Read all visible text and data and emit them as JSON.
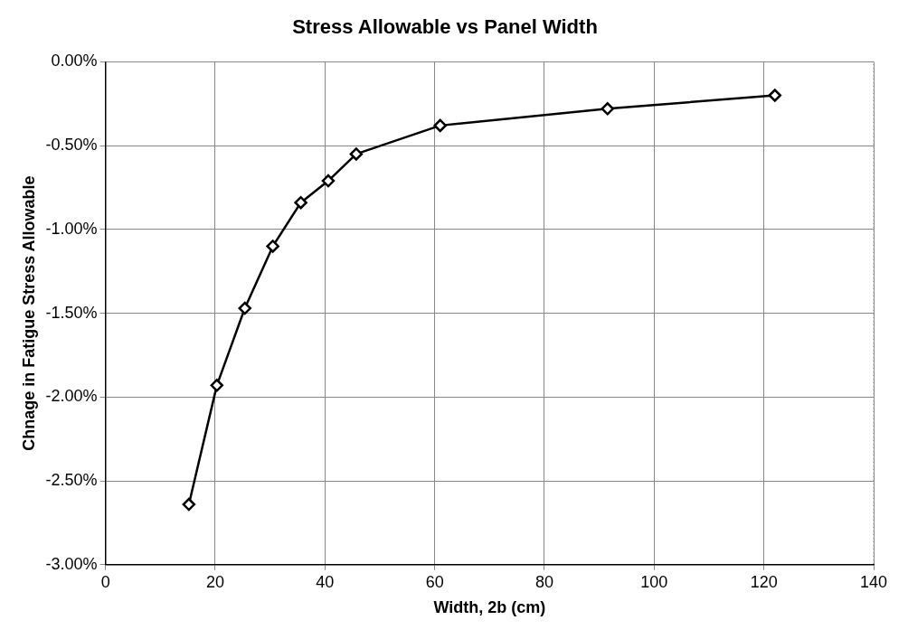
{
  "chart_data": {
    "type": "line",
    "title": "Stress Allowable vs Panel Width",
    "xlabel": "Width, 2b (cm)",
    "ylabel": "Chnage in Fatigue Stress Allowable",
    "x": [
      15.2,
      20.3,
      25.4,
      30.5,
      35.6,
      40.6,
      45.7,
      61.0,
      91.5,
      122.0
    ],
    "series": [
      {
        "color": "#000000",
        "values": [
          -2.64,
          -1.93,
          -1.47,
          -1.1,
          -0.84,
          -0.71,
          -0.55,
          -0.38,
          -0.28,
          -0.2
        ]
      }
    ],
    "xlim": [
      0,
      140
    ],
    "xticks": [
      0,
      20,
      40,
      60,
      80,
      100,
      120,
      140
    ],
    "ylim": [
      -3,
      0
    ],
    "yticks": [
      {
        "value": 0,
        "label": "0.00%"
      },
      {
        "value": -0.5,
        "label": "-0.50%"
      },
      {
        "value": -1,
        "label": "-1.00%"
      },
      {
        "value": -1.5,
        "label": "-1.50%"
      },
      {
        "value": -2,
        "label": "-2.00%"
      },
      {
        "value": -2.5,
        "label": "-2.50%"
      },
      {
        "value": -3,
        "label": "-3.00%"
      }
    ],
    "grid": true,
    "legend": false,
    "marker": "diamond",
    "line_style": "solid"
  }
}
